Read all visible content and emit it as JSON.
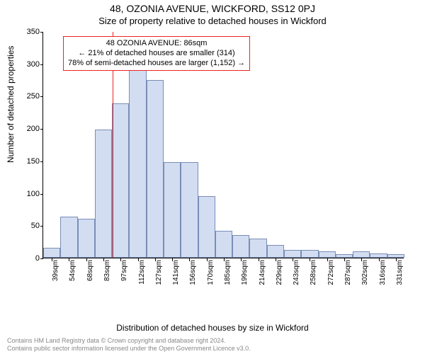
{
  "title_line1": "48, OZONIA AVENUE, WICKFORD, SS12 0PJ",
  "title_line2": "Size of property relative to detached houses in Wickford",
  "yaxis_label": "Number of detached properties",
  "xaxis_label": "Distribution of detached houses by size in Wickford",
  "footer_line1": "Contains HM Land Registry data © Crown copyright and database right 2024.",
  "footer_line2": "Contains public sector information licensed under the Open Government Licence v3.0.",
  "chart": {
    "type": "histogram",
    "ylim": [
      0,
      350
    ],
    "ytick_step": 50,
    "bar_fill": "#d2ddf2",
    "bar_stroke": "#7a8db5",
    "marker_color": "#ee2222",
    "marker_x_position": 0.192,
    "annotation": {
      "border_color": "#ee2222",
      "line1": "48 OZONIA AVENUE: 86sqm",
      "line2": "← 21% of detached houses are smaller (314)",
      "line3": "78% of semi-detached houses are larger (1,152) →"
    },
    "bars": [
      {
        "label": "39sqm",
        "value": 15
      },
      {
        "label": "54sqm",
        "value": 63
      },
      {
        "label": "68sqm",
        "value": 60
      },
      {
        "label": "83sqm",
        "value": 198
      },
      {
        "label": "97sqm",
        "value": 238
      },
      {
        "label": "112sqm",
        "value": 293
      },
      {
        "label": "127sqm",
        "value": 275
      },
      {
        "label": "141sqm",
        "value": 148
      },
      {
        "label": "156sqm",
        "value": 148
      },
      {
        "label": "170sqm",
        "value": 95
      },
      {
        "label": "185sqm",
        "value": 42
      },
      {
        "label": "199sqm",
        "value": 35
      },
      {
        "label": "214sqm",
        "value": 30
      },
      {
        "label": "229sqm",
        "value": 20
      },
      {
        "label": "243sqm",
        "value": 12
      },
      {
        "label": "258sqm",
        "value": 12
      },
      {
        "label": "272sqm",
        "value": 10
      },
      {
        "label": "287sqm",
        "value": 5
      },
      {
        "label": "302sqm",
        "value": 10
      },
      {
        "label": "316sqm",
        "value": 7
      },
      {
        "label": "331sqm",
        "value": 5
      }
    ]
  }
}
